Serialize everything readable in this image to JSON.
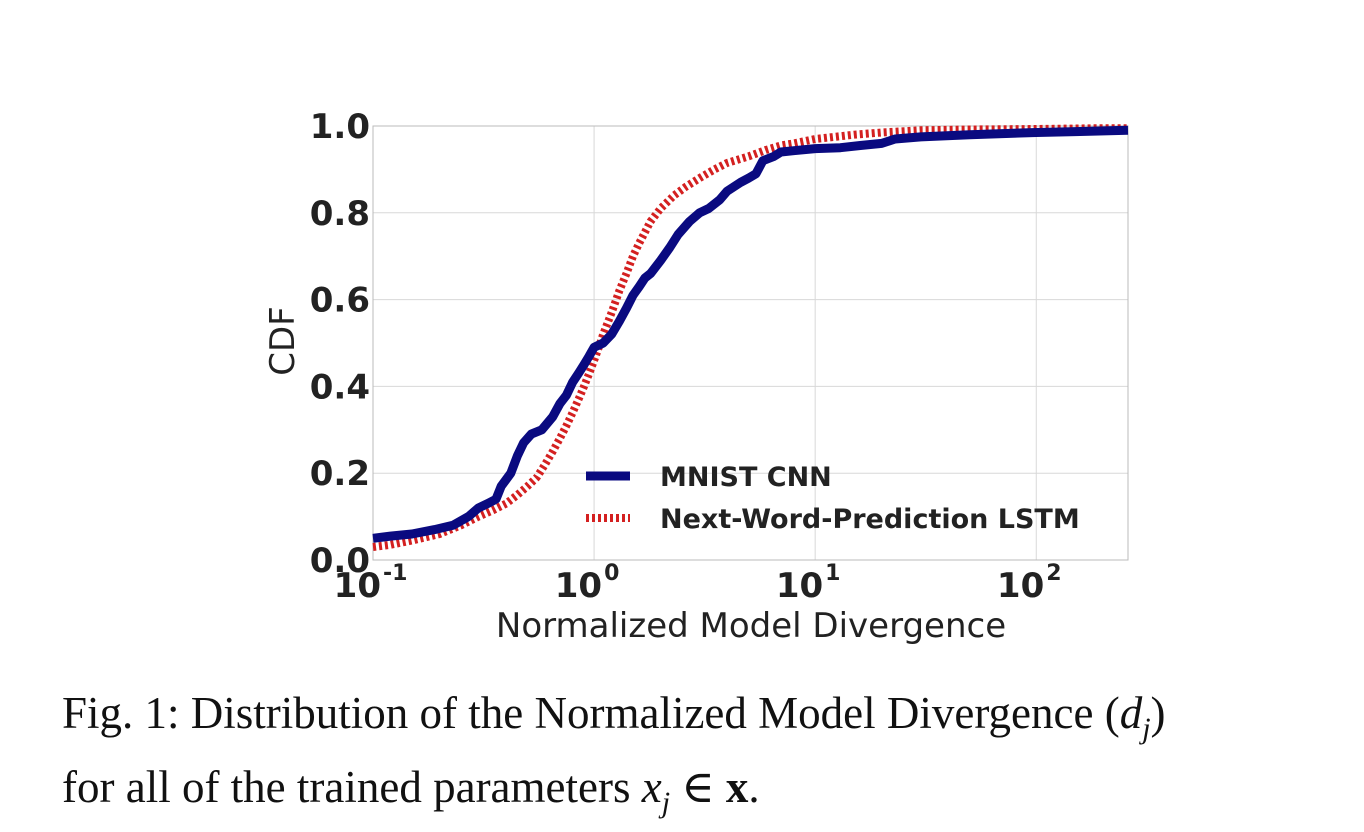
{
  "chart_data": {
    "type": "line",
    "xscale": "log",
    "xlim": [
      0.1,
      260
    ],
    "ylim": [
      0.0,
      1.0
    ],
    "grid": true,
    "xlabel": "Normalized Model Divergence",
    "ylabel": "CDF",
    "x_ticks": [
      {
        "value": 0.1,
        "base": "10",
        "exp": "-1"
      },
      {
        "value": 1,
        "base": "10",
        "exp": "0"
      },
      {
        "value": 10,
        "base": "10",
        "exp": "1"
      },
      {
        "value": 100,
        "base": "10",
        "exp": "2"
      }
    ],
    "y_ticks": [
      {
        "value": 0.0,
        "label": "0.0"
      },
      {
        "value": 0.2,
        "label": "0.2"
      },
      {
        "value": 0.4,
        "label": "0.4"
      },
      {
        "value": 0.6,
        "label": "0.6"
      },
      {
        "value": 0.8,
        "label": "0.8"
      },
      {
        "value": 1.0,
        "label": "1.0"
      }
    ],
    "legend_position": "lower-right",
    "series": [
      {
        "name": "MNIST CNN",
        "color": "#0a0a80",
        "style": "solid",
        "x": [
          0.1,
          0.12,
          0.15,
          0.19,
          0.23,
          0.27,
          0.3,
          0.33,
          0.36,
          0.38,
          0.42,
          0.45,
          0.48,
          0.52,
          0.58,
          0.65,
          0.7,
          0.75,
          0.8,
          0.85,
          0.9,
          0.95,
          1.0,
          1.1,
          1.2,
          1.3,
          1.4,
          1.5,
          1.6,
          1.7,
          1.8,
          2.0,
          2.2,
          2.4,
          2.7,
          3.0,
          3.3,
          3.7,
          4.0,
          4.6,
          5.0,
          5.4,
          5.8,
          6.5,
          7.0,
          8.0,
          10.0,
          13.0,
          16.0,
          20.0,
          23.0,
          30.0,
          50.0,
          100.0,
          150.0,
          260.0
        ],
        "y": [
          0.05,
          0.055,
          0.06,
          0.07,
          0.08,
          0.1,
          0.12,
          0.13,
          0.14,
          0.17,
          0.2,
          0.24,
          0.27,
          0.29,
          0.3,
          0.33,
          0.36,
          0.38,
          0.41,
          0.43,
          0.45,
          0.47,
          0.49,
          0.5,
          0.52,
          0.55,
          0.58,
          0.61,
          0.63,
          0.65,
          0.66,
          0.69,
          0.72,
          0.75,
          0.78,
          0.8,
          0.81,
          0.83,
          0.85,
          0.87,
          0.88,
          0.89,
          0.92,
          0.93,
          0.94,
          0.943,
          0.948,
          0.95,
          0.955,
          0.96,
          0.97,
          0.975,
          0.98,
          0.985,
          0.987,
          0.99
        ]
      },
      {
        "name": "Next-Word-Prediction LSTM",
        "color": "#d42020",
        "style": "dotted",
        "x": [
          0.1,
          0.12,
          0.15,
          0.2,
          0.25,
          0.3,
          0.35,
          0.4,
          0.45,
          0.5,
          0.55,
          0.6,
          0.65,
          0.7,
          0.75,
          0.8,
          0.85,
          0.9,
          0.95,
          1.0,
          1.05,
          1.1,
          1.2,
          1.3,
          1.4,
          1.5,
          1.6,
          1.8,
          2.0,
          2.3,
          2.6,
          3.0,
          3.5,
          4.0,
          5.0,
          6.0,
          7.0,
          8.0,
          10.0,
          15.0,
          20.0,
          30.0,
          50.0,
          100.0,
          200.0,
          260.0
        ],
        "y": [
          0.03,
          0.035,
          0.045,
          0.06,
          0.08,
          0.1,
          0.115,
          0.13,
          0.15,
          0.17,
          0.19,
          0.22,
          0.25,
          0.28,
          0.31,
          0.34,
          0.37,
          0.4,
          0.43,
          0.46,
          0.49,
          0.52,
          0.57,
          0.62,
          0.66,
          0.7,
          0.73,
          0.78,
          0.81,
          0.84,
          0.86,
          0.88,
          0.9,
          0.915,
          0.93,
          0.945,
          0.955,
          0.96,
          0.97,
          0.98,
          0.985,
          0.99,
          0.992,
          0.993,
          0.995,
          0.995
        ]
      }
    ]
  },
  "caption": {
    "line1_prefix": "Fig. 1: Distribution of the Normalized Model Divergence (",
    "line1_math": "d",
    "line1_sub": "j",
    "line1_suffix": ")",
    "line2_prefix": "for all of the trained parameters ",
    "line2_math_var": "x",
    "line2_math_sub": "j",
    "line2_math_rel": " ∈ ",
    "line2_math_bold": "x",
    "line2_suffix": "."
  }
}
